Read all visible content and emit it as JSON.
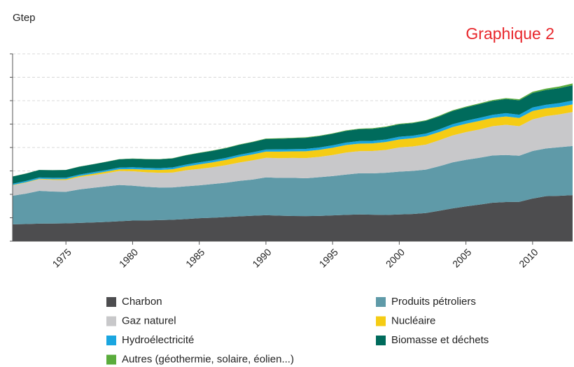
{
  "chart_data": {
    "type": "stacked_area",
    "title": "Graphique 2",
    "y_label": "Gtep",
    "x": [
      1971,
      1972,
      1973,
      1974,
      1975,
      1976,
      1977,
      1978,
      1979,
      1980,
      1981,
      1982,
      1983,
      1984,
      1985,
      1986,
      1987,
      1988,
      1989,
      1990,
      1991,
      1992,
      1993,
      1994,
      1995,
      1996,
      1997,
      1998,
      1999,
      2000,
      2001,
      2002,
      2003,
      2004,
      2005,
      2006,
      2007,
      2008,
      2009,
      2010,
      2011,
      2012,
      2013
    ],
    "xlim": [
      1971,
      2013
    ],
    "xticks": [
      1975,
      1980,
      1985,
      1990,
      1995,
      2000,
      2005,
      2010
    ],
    "ylim": [
      0,
      16
    ],
    "yticks": [
      0,
      2,
      4,
      6,
      8,
      10,
      12,
      14,
      16
    ],
    "grid": true,
    "series": [
      {
        "name": "Charbon",
        "color": "#4d4d4f",
        "values": [
          1.44,
          1.46,
          1.5,
          1.51,
          1.52,
          1.56,
          1.6,
          1.64,
          1.7,
          1.76,
          1.77,
          1.8,
          1.83,
          1.89,
          1.96,
          2.0,
          2.06,
          2.12,
          2.17,
          2.22,
          2.18,
          2.15,
          2.14,
          2.16,
          2.2,
          2.25,
          2.28,
          2.26,
          2.24,
          2.28,
          2.32,
          2.4,
          2.6,
          2.8,
          2.97,
          3.12,
          3.28,
          3.34,
          3.36,
          3.64,
          3.84,
          3.87,
          3.93
        ]
      },
      {
        "name": "Produits pétroliers",
        "color": "#5f9aa8",
        "values": [
          2.44,
          2.6,
          2.8,
          2.73,
          2.7,
          2.86,
          2.95,
          3.04,
          3.1,
          2.98,
          2.87,
          2.78,
          2.76,
          2.8,
          2.81,
          2.88,
          2.93,
          3.03,
          3.09,
          3.23,
          3.22,
          3.26,
          3.23,
          3.3,
          3.36,
          3.44,
          3.52,
          3.53,
          3.6,
          3.66,
          3.68,
          3.71,
          3.8,
          3.93,
          3.98,
          4.0,
          4.04,
          4.02,
          3.94,
          4.06,
          4.08,
          4.15,
          4.2
        ]
      },
      {
        "name": "Gaz naturel",
        "color": "#c8c8ca",
        "values": [
          0.89,
          0.93,
          0.98,
          0.99,
          1.0,
          1.05,
          1.08,
          1.12,
          1.19,
          1.23,
          1.25,
          1.26,
          1.27,
          1.36,
          1.4,
          1.43,
          1.5,
          1.57,
          1.64,
          1.67,
          1.69,
          1.7,
          1.73,
          1.74,
          1.8,
          1.88,
          1.89,
          1.91,
          1.95,
          2.07,
          2.09,
          2.14,
          2.22,
          2.3,
          2.36,
          2.42,
          2.5,
          2.58,
          2.52,
          2.7,
          2.76,
          2.81,
          2.9
        ]
      },
      {
        "name": "Nucléaire",
        "color": "#f5cc14",
        "values": [
          0.03,
          0.04,
          0.05,
          0.06,
          0.08,
          0.1,
          0.12,
          0.14,
          0.15,
          0.19,
          0.22,
          0.24,
          0.28,
          0.33,
          0.39,
          0.42,
          0.45,
          0.49,
          0.51,
          0.53,
          0.56,
          0.56,
          0.58,
          0.6,
          0.62,
          0.64,
          0.64,
          0.65,
          0.68,
          0.68,
          0.7,
          0.71,
          0.7,
          0.72,
          0.72,
          0.73,
          0.71,
          0.71,
          0.7,
          0.72,
          0.67,
          0.64,
          0.65
        ]
      },
      {
        "name": "Hydroélectricité",
        "color": "#1aa6e0",
        "values": [
          0.1,
          0.11,
          0.11,
          0.12,
          0.12,
          0.12,
          0.13,
          0.13,
          0.14,
          0.15,
          0.15,
          0.15,
          0.16,
          0.16,
          0.17,
          0.17,
          0.17,
          0.17,
          0.18,
          0.18,
          0.19,
          0.19,
          0.2,
          0.2,
          0.21,
          0.21,
          0.22,
          0.22,
          0.22,
          0.23,
          0.22,
          0.23,
          0.23,
          0.24,
          0.25,
          0.26,
          0.26,
          0.28,
          0.28,
          0.3,
          0.3,
          0.32,
          0.33
        ]
      },
      {
        "name": "Biomasse et déchets",
        "color": "#006b5c",
        "values": [
          0.62,
          0.63,
          0.64,
          0.65,
          0.66,
          0.67,
          0.68,
          0.7,
          0.71,
          0.73,
          0.74,
          0.76,
          0.77,
          0.79,
          0.8,
          0.82,
          0.83,
          0.85,
          0.87,
          0.9,
          0.91,
          0.93,
          0.95,
          0.97,
          0.98,
          1.0,
          1.02,
          1.03,
          1.05,
          1.06,
          1.07,
          1.09,
          1.11,
          1.13,
          1.15,
          1.17,
          1.19,
          1.21,
          1.23,
          1.24,
          1.26,
          1.28,
          1.3
        ]
      },
      {
        "name": "Autres (géothermie, solaire, éolien...)",
        "color": "#5aac3c",
        "values": [
          0.01,
          0.01,
          0.01,
          0.01,
          0.01,
          0.01,
          0.01,
          0.01,
          0.02,
          0.02,
          0.02,
          0.02,
          0.02,
          0.02,
          0.03,
          0.03,
          0.03,
          0.03,
          0.03,
          0.04,
          0.04,
          0.04,
          0.04,
          0.04,
          0.04,
          0.04,
          0.04,
          0.05,
          0.05,
          0.05,
          0.05,
          0.05,
          0.06,
          0.06,
          0.06,
          0.07,
          0.07,
          0.08,
          0.09,
          0.1,
          0.12,
          0.14,
          0.16
        ]
      }
    ]
  }
}
